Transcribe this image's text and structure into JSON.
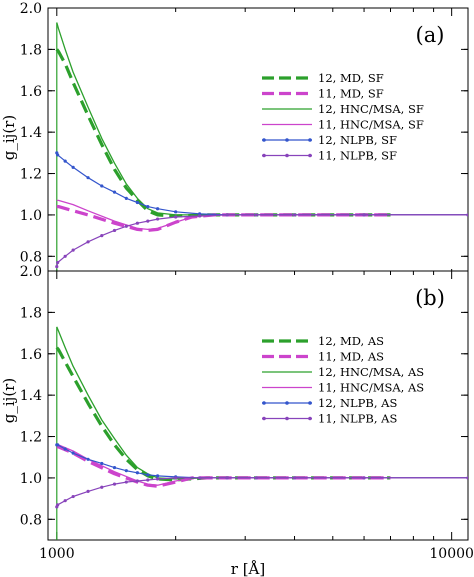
{
  "chart_data": [
    {
      "type": "line",
      "panel_label": "(a)",
      "xlabel": "r [Å]",
      "ylabel": "g_ij(r)",
      "xscale": "log",
      "xlim": [
        950,
        11000
      ],
      "ylim": [
        0.7,
        2.0
      ],
      "yticks": [
        0.8,
        1.0,
        1.2,
        1.4,
        1.6,
        1.8,
        2.0
      ],
      "ytick_labels": [
        "0.8",
        "1.0",
        "1.2",
        "1.4",
        "1.6",
        "1.8",
        "2.0"
      ],
      "xtick_labels": [],
      "legend_position": "right",
      "grid": false,
      "series": [
        {
          "name": "12, MD, SF",
          "color": "#2ca02c",
          "style": "dashed-thick",
          "x": [
            1000,
            1010,
            1050,
            1100,
            1200,
            1300,
            1400,
            1500,
            1600,
            1700,
            1800,
            2000,
            2400,
            3000,
            5000,
            7000
          ],
          "y": [
            1.8,
            1.79,
            1.73,
            1.64,
            1.48,
            1.34,
            1.22,
            1.13,
            1.07,
            1.02,
            1.0,
            0.995,
            1.0,
            1.0,
            1.0,
            1.0
          ]
        },
        {
          "name": "11, MD, SF",
          "color": "#cc44cc",
          "style": "dashed-thick",
          "x": [
            1000,
            1010,
            1100,
            1200,
            1400,
            1600,
            1700,
            1800,
            2000,
            2200,
            2500,
            3000,
            5000,
            7000
          ],
          "y": [
            1.04,
            1.04,
            1.02,
            1.0,
            0.96,
            0.93,
            0.925,
            0.93,
            0.965,
            0.99,
            1.0,
            1.0,
            1.0,
            1.0
          ]
        },
        {
          "name": "12, HNC/MSA, SF",
          "color": "#2ca02c",
          "style": "solid",
          "x": [
            1000,
            1010,
            1050,
            1100,
            1200,
            1300,
            1400,
            1500,
            1600,
            1700,
            1800,
            2000,
            2400,
            3000,
            5000,
            11000
          ],
          "y": [
            1.93,
            1.9,
            1.8,
            1.69,
            1.52,
            1.37,
            1.25,
            1.15,
            1.08,
            1.03,
            1.01,
            1.0,
            1.0,
            1.0,
            1.0,
            1.0
          ]
        },
        {
          "name": "11, HNC/MSA, SF",
          "color": "#cc44cc",
          "style": "solid",
          "x": [
            1000,
            1010,
            1100,
            1200,
            1400,
            1600,
            1700,
            1800,
            2000,
            2200,
            2500,
            3000,
            11000
          ],
          "y": [
            1.07,
            1.07,
            1.05,
            1.02,
            0.97,
            0.935,
            0.93,
            0.935,
            0.965,
            0.99,
            1.0,
            1.0,
            1.0
          ]
        },
        {
          "name": "12, NLPB, SF",
          "color": "#3355cc",
          "style": "solid-markers",
          "x": [
            1000,
            1005,
            1050,
            1100,
            1200,
            1300,
            1400,
            1500,
            1600,
            1700,
            1800,
            2000,
            2300,
            2700,
            3200,
            4000,
            6000,
            11000
          ],
          "y": [
            1.3,
            1.29,
            1.26,
            1.23,
            1.18,
            1.14,
            1.11,
            1.08,
            1.06,
            1.04,
            1.03,
            1.015,
            1.005,
            1.0,
            1.0,
            1.0,
            1.0,
            1.0
          ]
        },
        {
          "name": "11, NLPB, SF",
          "color": "#8844bb",
          "style": "solid-markers",
          "x": [
            1000,
            1005,
            1050,
            1100,
            1200,
            1300,
            1400,
            1500,
            1600,
            1700,
            1800,
            2000,
            2300,
            2700,
            3200,
            4000,
            6000,
            11000
          ],
          "y": [
            0.75,
            0.77,
            0.8,
            0.83,
            0.87,
            0.9,
            0.925,
            0.945,
            0.96,
            0.97,
            0.98,
            0.99,
            0.995,
            1.0,
            1.0,
            1.0,
            1.0,
            1.0
          ]
        }
      ]
    },
    {
      "type": "line",
      "panel_label": "(b)",
      "xlabel": "r [Å]",
      "ylabel": "g_ij(r)",
      "xscale": "log",
      "xlim": [
        950,
        11000
      ],
      "ylim": [
        0.7,
        2.0
      ],
      "yticks": [
        0.8,
        1.0,
        1.2,
        1.4,
        1.6,
        1.8,
        2.0
      ],
      "ytick_labels": [
        "0.8",
        "1.0",
        "1.2",
        "1.4",
        "1.6",
        "1.8",
        "2.0"
      ],
      "xticks": [
        1000,
        10000
      ],
      "xtick_labels": [
        "1000",
        "10000"
      ],
      "legend_position": "right",
      "grid": false,
      "series": [
        {
          "name": "12, MD, AS",
          "color": "#2ca02c",
          "style": "dashed-thick",
          "x": [
            1000,
            1010,
            1050,
            1100,
            1200,
            1300,
            1400,
            1500,
            1600,
            1700,
            1800,
            2000,
            2400,
            3000,
            5000,
            7000
          ],
          "y": [
            1.63,
            1.62,
            1.56,
            1.49,
            1.36,
            1.25,
            1.16,
            1.09,
            1.04,
            1.01,
            0.995,
            0.99,
            1.0,
            1.0,
            1.0,
            1.0
          ]
        },
        {
          "name": "11, MD, AS",
          "color": "#cc44cc",
          "style": "dashed-thick",
          "x": [
            1000,
            1010,
            1100,
            1200,
            1400,
            1600,
            1700,
            1800,
            2000,
            2200,
            2500,
            3000,
            5000,
            7000
          ],
          "y": [
            1.15,
            1.15,
            1.12,
            1.08,
            1.02,
            0.98,
            0.965,
            0.96,
            0.98,
            1.0,
            1.0,
            1.0,
            1.0,
            1.0
          ]
        },
        {
          "name": "12, HNC/MSA, AS",
          "color": "#2ca02c",
          "style": "solid",
          "x": [
            1000,
            1010,
            1050,
            1100,
            1200,
            1300,
            1400,
            1500,
            1600,
            1700,
            1800,
            2000,
            2400,
            3000,
            5000,
            11000
          ],
          "y": [
            1.73,
            1.71,
            1.63,
            1.54,
            1.4,
            1.28,
            1.19,
            1.11,
            1.05,
            1.02,
            1.0,
            0.995,
            1.0,
            1.0,
            1.0,
            1.0
          ]
        },
        {
          "name": "11, HNC/MSA, AS",
          "color": "#cc44cc",
          "style": "solid",
          "x": [
            1000,
            1010,
            1100,
            1200,
            1400,
            1600,
            1700,
            1800,
            2000,
            2200,
            2500,
            3000,
            11000
          ],
          "y": [
            1.16,
            1.16,
            1.13,
            1.09,
            1.03,
            0.985,
            0.97,
            0.965,
            0.985,
            1.0,
            1.0,
            1.0,
            1.0
          ]
        },
        {
          "name": "12, NLPB, AS",
          "color": "#3355cc",
          "style": "solid-markers",
          "x": [
            1000,
            1005,
            1050,
            1100,
            1200,
            1300,
            1400,
            1500,
            1600,
            1700,
            1800,
            2000,
            2300,
            2700,
            3200,
            4000,
            6000,
            11000
          ],
          "y": [
            1.16,
            1.16,
            1.14,
            1.12,
            1.09,
            1.07,
            1.05,
            1.035,
            1.025,
            1.015,
            1.01,
            1.005,
            1.0,
            1.0,
            1.0,
            1.0,
            1.0,
            1.0
          ]
        },
        {
          "name": "11, NLPB, AS",
          "color": "#8844bb",
          "style": "solid-markers",
          "x": [
            1000,
            1005,
            1050,
            1100,
            1200,
            1300,
            1400,
            1500,
            1600,
            1700,
            1800,
            2000,
            2300,
            2700,
            3200,
            4000,
            6000,
            11000
          ],
          "y": [
            0.86,
            0.87,
            0.89,
            0.91,
            0.935,
            0.955,
            0.97,
            0.98,
            0.985,
            0.99,
            0.995,
            1.0,
            1.0,
            1.0,
            1.0,
            1.0,
            1.0,
            1.0
          ]
        }
      ]
    }
  ]
}
